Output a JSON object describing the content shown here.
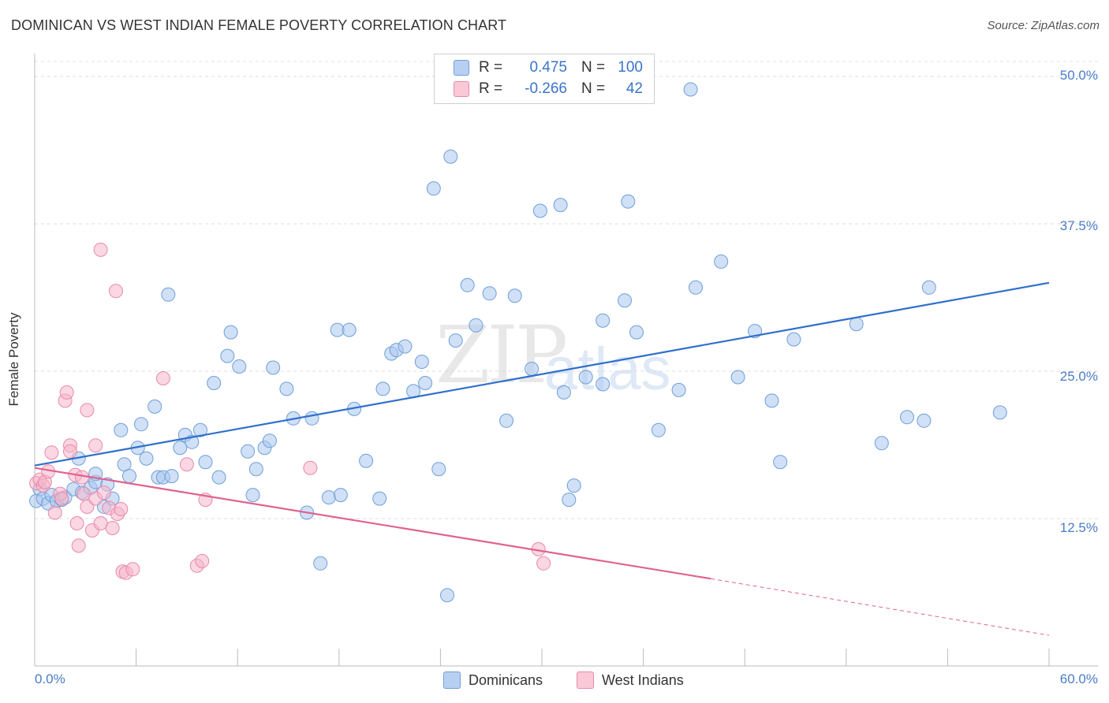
{
  "header": {
    "title": "DOMINICAN VS WEST INDIAN FEMALE POVERTY CORRELATION CHART",
    "source": "Source: ZipAtlas.com"
  },
  "watermark": {
    "part1": "ZIP",
    "part2": "atlas"
  },
  "legend": {
    "rows": [
      {
        "r_label": "R =",
        "r_value": "0.475",
        "n_label": "N =",
        "n_value": "100",
        "color": "#a9c6ef"
      },
      {
        "r_label": "R =",
        "r_value": "-0.266",
        "n_label": "N =",
        "n_value": "42",
        "color": "#f6b7cb"
      }
    ]
  },
  "bottom_legend": {
    "series1": "Dominicans",
    "series2": "West Indians"
  },
  "axes": {
    "ylabel": "Female Poverty",
    "xmin_label": "0.0%",
    "xmax_label": "60.0%",
    "ytick_labels": [
      "12.5%",
      "25.0%",
      "37.5%",
      "50.0%"
    ]
  },
  "chart_data": {
    "type": "scatter",
    "xlabel": "",
    "ylabel": "Female Poverty",
    "xlim": [
      0,
      60
    ],
    "ylim": [
      0,
      51
    ],
    "yticks": [
      12.5,
      25.0,
      37.5,
      50.0
    ],
    "legend_placement": "top-center",
    "grid": true,
    "series": [
      {
        "name": "Dominicans",
        "color": "#a9c6ef",
        "stroke": "#6f9fd8",
        "line_color": "#2f6fcc",
        "r": 0.475,
        "n": 100,
        "trend": {
          "x": [
            0,
            60
          ],
          "y": [
            17.0,
            32.5
          ]
        },
        "points": [
          [
            0.1,
            14.0
          ],
          [
            0.3,
            15.0
          ],
          [
            0.5,
            14.2
          ],
          [
            0.8,
            13.8
          ],
          [
            1.0,
            14.5
          ],
          [
            1.3,
            14.0
          ],
          [
            1.6,
            14.1
          ],
          [
            1.8,
            14.3
          ],
          [
            2.3,
            15.0
          ],
          [
            2.6,
            17.6
          ],
          [
            2.8,
            14.7
          ],
          [
            3.3,
            15.1
          ],
          [
            3.6,
            15.6
          ],
          [
            3.6,
            16.3
          ],
          [
            4.1,
            13.5
          ],
          [
            4.3,
            15.4
          ],
          [
            4.6,
            14.2
          ],
          [
            5.1,
            20.0
          ],
          [
            5.3,
            17.1
          ],
          [
            5.6,
            16.1
          ],
          [
            6.1,
            18.5
          ],
          [
            6.3,
            20.5
          ],
          [
            6.6,
            17.6
          ],
          [
            7.1,
            22.0
          ],
          [
            7.3,
            16.0
          ],
          [
            7.6,
            16.0
          ],
          [
            7.9,
            31.5
          ],
          [
            8.1,
            16.1
          ],
          [
            8.6,
            18.5
          ],
          [
            8.9,
            19.6
          ],
          [
            9.3,
            19.0
          ],
          [
            9.8,
            20.0
          ],
          [
            10.1,
            17.3
          ],
          [
            10.6,
            24.0
          ],
          [
            10.9,
            16.0
          ],
          [
            11.4,
            26.3
          ],
          [
            11.6,
            28.3
          ],
          [
            12.1,
            25.4
          ],
          [
            12.6,
            18.2
          ],
          [
            12.9,
            14.5
          ],
          [
            13.1,
            16.7
          ],
          [
            13.6,
            18.5
          ],
          [
            13.9,
            19.1
          ],
          [
            14.1,
            25.3
          ],
          [
            14.9,
            23.5
          ],
          [
            15.3,
            21.0
          ],
          [
            16.1,
            13.0
          ],
          [
            16.4,
            21.0
          ],
          [
            16.9,
            8.7
          ],
          [
            17.4,
            14.3
          ],
          [
            17.9,
            28.5
          ],
          [
            18.1,
            14.5
          ],
          [
            18.6,
            28.5
          ],
          [
            18.9,
            21.8
          ],
          [
            19.6,
            17.4
          ],
          [
            20.4,
            14.2
          ],
          [
            20.6,
            23.5
          ],
          [
            21.1,
            26.5
          ],
          [
            21.4,
            26.8
          ],
          [
            21.9,
            27.1
          ],
          [
            22.4,
            23.3
          ],
          [
            22.9,
            25.8
          ],
          [
            23.1,
            24.0
          ],
          [
            23.6,
            40.5
          ],
          [
            23.9,
            16.7
          ],
          [
            24.6,
            43.2
          ],
          [
            24.9,
            27.6
          ],
          [
            24.4,
            6.0
          ],
          [
            25.6,
            32.3
          ],
          [
            26.1,
            28.9
          ],
          [
            26.9,
            31.6
          ],
          [
            28.4,
            31.4
          ],
          [
            27.9,
            20.8
          ],
          [
            29.4,
            25.2
          ],
          [
            29.9,
            38.6
          ],
          [
            31.3,
            23.2
          ],
          [
            31.1,
            39.1
          ],
          [
            31.6,
            14.1
          ],
          [
            31.9,
            15.3
          ],
          [
            32.6,
            24.5
          ],
          [
            33.6,
            23.9
          ],
          [
            33.6,
            29.3
          ],
          [
            34.9,
            31.0
          ],
          [
            35.1,
            39.4
          ],
          [
            35.6,
            28.3
          ],
          [
            36.9,
            20.0
          ],
          [
            38.1,
            23.4
          ],
          [
            39.1,
            32.1
          ],
          [
            40.6,
            34.3
          ],
          [
            38.8,
            48.9
          ],
          [
            41.6,
            24.5
          ],
          [
            42.6,
            28.4
          ],
          [
            43.6,
            22.5
          ],
          [
            44.1,
            17.3
          ],
          [
            44.9,
            27.7
          ],
          [
            48.6,
            29.0
          ],
          [
            50.1,
            18.9
          ],
          [
            51.6,
            21.1
          ],
          [
            52.6,
            20.8
          ],
          [
            52.9,
            32.1
          ],
          [
            57.1,
            21.5
          ]
        ]
      },
      {
        "name": "West Indians",
        "color": "#f6b7cb",
        "stroke": "#e88aaa",
        "line_color": "#e0628f",
        "r": -0.266,
        "n": 42,
        "trend": {
          "x": [
            0,
            40
          ],
          "y": [
            16.8,
            7.4
          ]
        },
        "trend_dashed": {
          "x": [
            40,
            60
          ],
          "y": [
            7.4,
            2.6
          ]
        },
        "points": [
          [
            0.1,
            15.5
          ],
          [
            0.3,
            15.8
          ],
          [
            0.5,
            15.3
          ],
          [
            0.6,
            15.6
          ],
          [
            0.8,
            16.5
          ],
          [
            1.0,
            18.1
          ],
          [
            1.2,
            13.0
          ],
          [
            1.5,
            14.6
          ],
          [
            1.6,
            14.2
          ],
          [
            1.8,
            22.5
          ],
          [
            1.9,
            23.2
          ],
          [
            2.1,
            18.7
          ],
          [
            2.1,
            18.2
          ],
          [
            2.4,
            16.2
          ],
          [
            2.5,
            12.1
          ],
          [
            2.6,
            10.2
          ],
          [
            2.8,
            16.0
          ],
          [
            2.9,
            14.6
          ],
          [
            3.1,
            21.7
          ],
          [
            3.1,
            13.5
          ],
          [
            3.4,
            11.5
          ],
          [
            3.6,
            18.7
          ],
          [
            3.6,
            14.2
          ],
          [
            3.9,
            12.1
          ],
          [
            3.9,
            35.3
          ],
          [
            4.1,
            14.7
          ],
          [
            4.4,
            13.4
          ],
          [
            4.6,
            11.7
          ],
          [
            4.8,
            31.8
          ],
          [
            4.9,
            12.9
          ],
          [
            5.1,
            13.3
          ],
          [
            5.2,
            8.0
          ],
          [
            5.4,
            7.9
          ],
          [
            5.8,
            8.2
          ],
          [
            7.6,
            24.4
          ],
          [
            9.0,
            17.1
          ],
          [
            9.6,
            8.5
          ],
          [
            9.9,
            8.9
          ],
          [
            10.1,
            14.1
          ],
          [
            16.3,
            16.8
          ],
          [
            29.8,
            9.9
          ],
          [
            30.1,
            8.7
          ]
        ]
      }
    ]
  }
}
